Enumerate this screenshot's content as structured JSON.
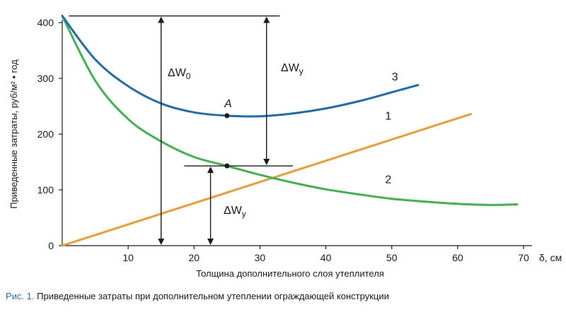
{
  "chart_data": {
    "type": "line",
    "xlabel": "Толщина дополнительного слоя утеплителя",
    "ylabel": "Приведенные затраты, руб/м² • год",
    "x_unit": "δ, см",
    "xlim": [
      0,
      70
    ],
    "ylim": [
      0,
      400
    ],
    "x_ticks": [
      10,
      20,
      30,
      40,
      50,
      60,
      70
    ],
    "y_ticks": [
      0,
      100,
      200,
      300,
      400
    ],
    "series": [
      {
        "name": "1",
        "color": "#f39a2e",
        "x": [
          0,
          62
        ],
        "y": [
          0,
          236
        ]
      },
      {
        "name": "2",
        "color": "#3cb54a",
        "x": [
          0,
          5,
          10,
          15,
          20,
          25,
          30,
          35,
          40,
          45,
          50,
          55,
          60,
          65,
          69
        ],
        "y": [
          412,
          296,
          227,
          187,
          159,
          143,
          127,
          113,
          101,
          92,
          84,
          79,
          75,
          73,
          74
        ]
      },
      {
        "name": "3",
        "color": "#1b6db3",
        "x": [
          0,
          5,
          10,
          15,
          20,
          25,
          30,
          35,
          40,
          45,
          50,
          54
        ],
        "y": [
          412,
          334,
          286,
          255,
          239,
          233,
          232,
          237,
          246,
          259,
          275,
          288
        ]
      }
    ],
    "annotations": {
      "point_a_label": "A",
      "delta_w0_label": "ΔW",
      "delta_w0_sub": "0",
      "delta_wy_label": "ΔW",
      "delta_wy_sub": "у",
      "delta_wy2_label": "ΔW",
      "delta_wy2_sub": "у"
    }
  },
  "caption": {
    "label": "Рис. 1.",
    "text": "Приведенные затраты при дополнительном утеплении ограждающей конструкции"
  }
}
